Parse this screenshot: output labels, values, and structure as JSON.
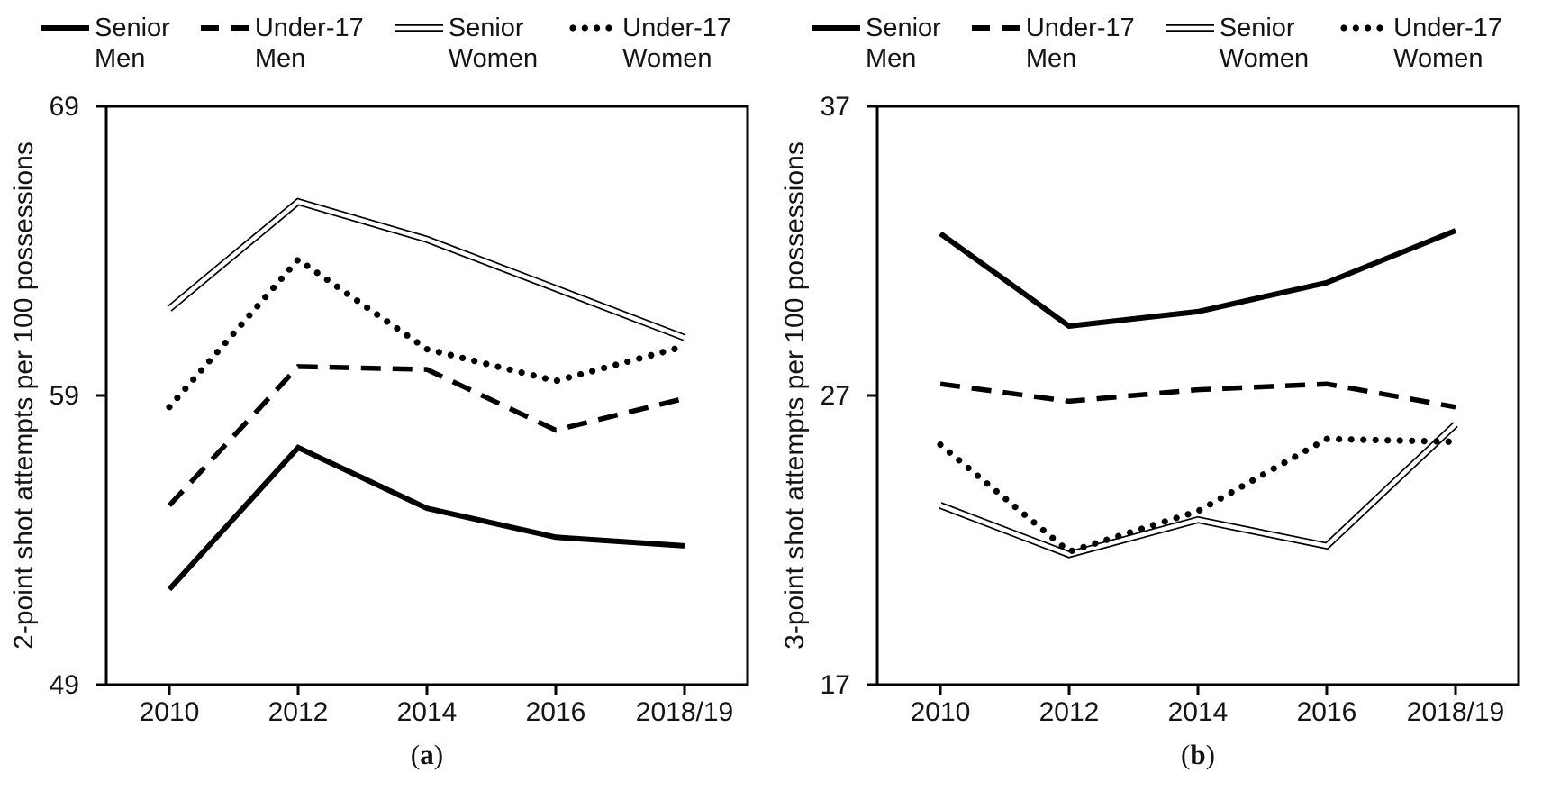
{
  "figure": {
    "background": "#ffffff",
    "ink_color": "#000000",
    "text_color": "#141414"
  },
  "chart_data": [
    {
      "type": "line",
      "panel": "a",
      "caption_prefix": "(",
      "caption_letter": "a",
      "caption_suffix": ")",
      "ylabel": "2-point shot attempts per 100 possessions",
      "x_tick_labels": [
        "2010",
        "2012",
        "2014",
        "2016",
        "2018/19"
      ],
      "ylim": [
        49,
        69
      ],
      "yticks": [
        49,
        59,
        69
      ],
      "grid": false,
      "legend_position": "top",
      "series": [
        {
          "name": "Senior Men",
          "legend_line1": "Senior",
          "legend_line2": "Men",
          "style": "solid-thick",
          "values": [
            52.3,
            57.2,
            55.1,
            54.1,
            53.8
          ]
        },
        {
          "name": "Under-17 Men",
          "legend_line1": "Under-17",
          "legend_line2": "Men",
          "style": "dashed",
          "values": [
            55.2,
            60.0,
            59.9,
            57.8,
            58.9
          ]
        },
        {
          "name": "Senior Women",
          "legend_line1": "Senior",
          "legend_line2": "Women",
          "style": "double-line",
          "values": [
            62.0,
            65.7,
            64.4,
            62.7,
            61.0
          ]
        },
        {
          "name": "Under-17 Women",
          "legend_line1": "Under-17",
          "legend_line2": "Women",
          "style": "dotted",
          "values": [
            58.6,
            63.7,
            60.6,
            59.5,
            60.7
          ]
        }
      ]
    },
    {
      "type": "line",
      "panel": "b",
      "caption_prefix": "(",
      "caption_letter": "b",
      "caption_suffix": ")",
      "ylabel": "3-point shot attempts per 100 possessions",
      "x_tick_labels": [
        "2010",
        "2012",
        "2014",
        "2016",
        "2018/19"
      ],
      "ylim": [
        17,
        37
      ],
      "yticks": [
        17,
        27,
        37
      ],
      "grid": false,
      "legend_position": "top",
      "series": [
        {
          "name": "Senior Men",
          "legend_line1": "Senior",
          "legend_line2": "Men",
          "style": "solid-thick",
          "values": [
            32.6,
            29.4,
            29.9,
            30.9,
            32.7
          ]
        },
        {
          "name": "Under-17 Men",
          "legend_line1": "Under-17",
          "legend_line2": "Men",
          "style": "dashed",
          "values": [
            27.4,
            26.8,
            27.2,
            27.4,
            26.6
          ]
        },
        {
          "name": "Senior Women",
          "legend_line1": "Senior",
          "legend_line2": "Women",
          "style": "double-line",
          "values": [
            23.2,
            21.5,
            22.7,
            21.8,
            26.0
          ]
        },
        {
          "name": "Under-17 Women",
          "legend_line1": "Under-17",
          "legend_line2": "Women",
          "style": "dotted",
          "values": [
            25.3,
            21.6,
            23.0,
            25.5,
            25.4
          ]
        }
      ]
    }
  ]
}
